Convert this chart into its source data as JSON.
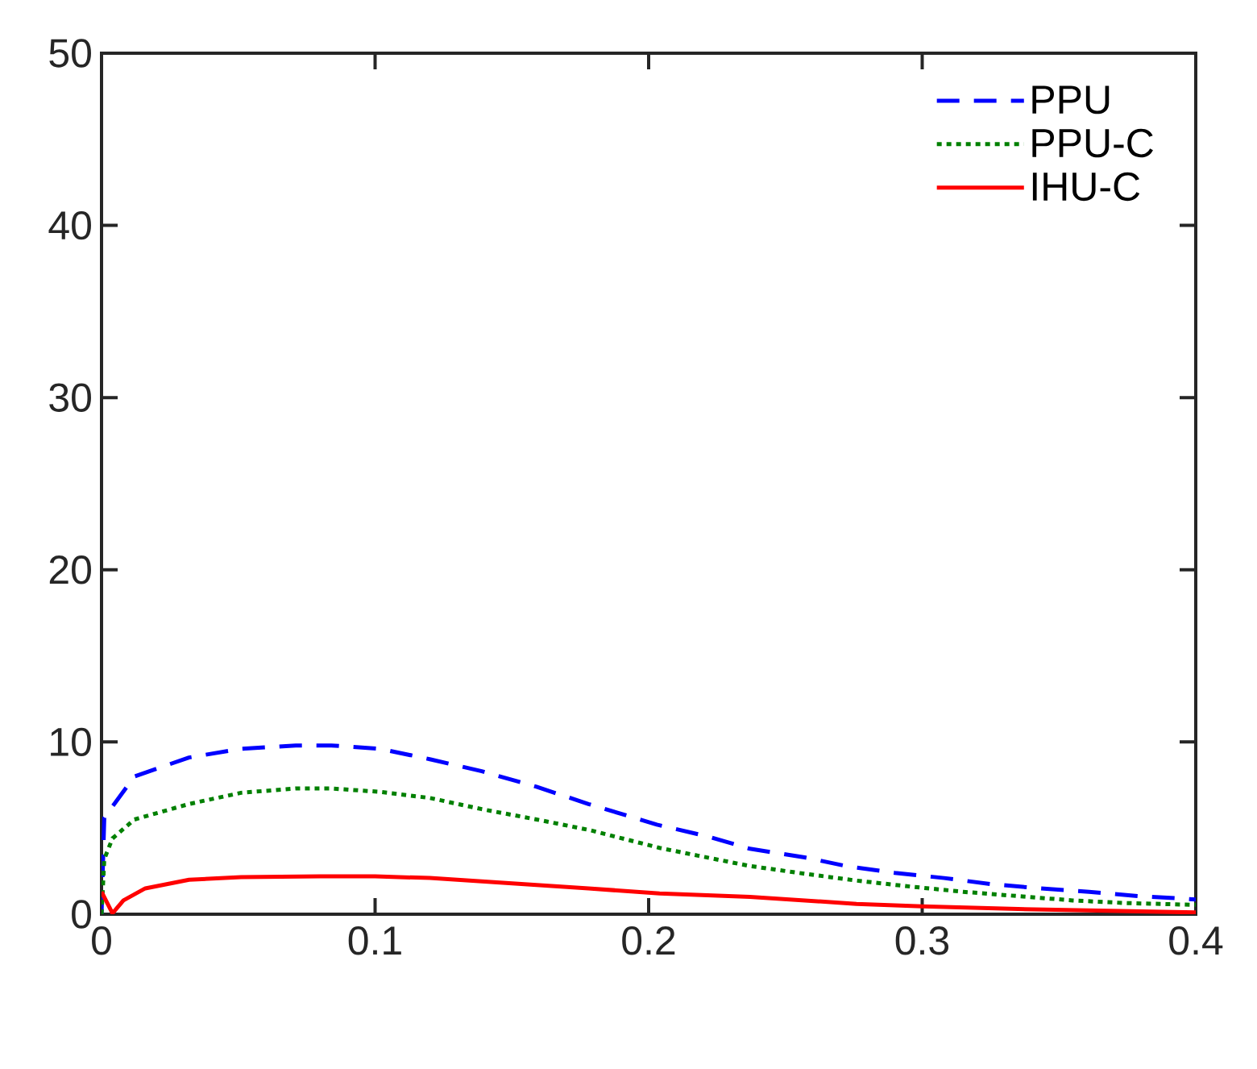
{
  "chart_data": {
    "type": "line",
    "xlim": [
      0,
      0.4
    ],
    "ylim": [
      0,
      50
    ],
    "xticks": [
      0,
      0.1,
      0.2,
      0.3,
      0.4
    ],
    "yticks": [
      0,
      10,
      20,
      30,
      40,
      50
    ],
    "grid": false,
    "legend": "top right",
    "series": [
      {
        "name": "PPU",
        "color": "#0000ff",
        "line_style": "dashed",
        "x": [
          0,
          0.001,
          0.012,
          0.032,
          0.051,
          0.071,
          0.084,
          0.102,
          0.12,
          0.139,
          0.159,
          0.178,
          0.203,
          0.222,
          0.237,
          0.257,
          0.272,
          0.29,
          0.308,
          0.325,
          0.343,
          0.361,
          0.379,
          0.396,
          0.4
        ],
        "values": [
          0,
          5.6,
          8.0,
          9.1,
          9.6,
          9.8,
          9.8,
          9.6,
          9.0,
          8.3,
          7.4,
          6.4,
          5.2,
          4.5,
          3.8,
          3.3,
          2.8,
          2.4,
          2.1,
          1.75,
          1.5,
          1.3,
          1.05,
          0.9,
          0.85
        ]
      },
      {
        "name": "PPU-C",
        "color": "#008000",
        "line_style": "dotted",
        "x": [
          0,
          0.001,
          0.004,
          0.012,
          0.032,
          0.051,
          0.071,
          0.084,
          0.102,
          0.12,
          0.139,
          0.159,
          0.178,
          0.204,
          0.218,
          0.237,
          0.257,
          0.276,
          0.296,
          0.315,
          0.335,
          0.355,
          0.374,
          0.398,
          0.4
        ],
        "values": [
          0,
          3.2,
          4.4,
          5.5,
          6.4,
          7.05,
          7.3,
          7.3,
          7.1,
          6.75,
          6.1,
          5.5,
          4.9,
          3.85,
          3.4,
          2.8,
          2.35,
          1.95,
          1.6,
          1.3,
          1.05,
          0.8,
          0.65,
          0.55,
          0.55
        ]
      },
      {
        "name": "IHU-C",
        "color": "#ff0000",
        "line_style": "solid",
        "x": [
          0,
          0.004,
          0.008,
          0.016,
          0.032,
          0.051,
          0.08,
          0.1,
          0.12,
          0.149,
          0.178,
          0.204,
          0.237,
          0.276,
          0.3,
          0.335,
          0.4
        ],
        "values": [
          1.3,
          0.05,
          0.8,
          1.5,
          2.0,
          2.15,
          2.2,
          2.2,
          2.1,
          1.8,
          1.5,
          1.2,
          1.0,
          0.6,
          0.45,
          0.3,
          0.1
        ]
      }
    ]
  }
}
